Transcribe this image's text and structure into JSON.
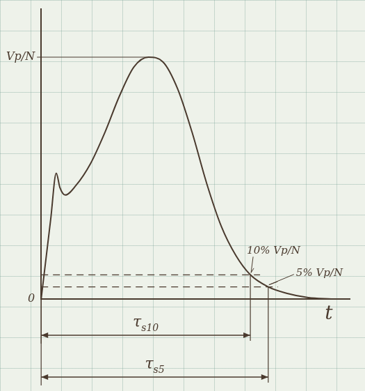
{
  "chart_data": {
    "type": "line",
    "xlabel": "t",
    "color": "#4a3a2e",
    "xlim": [
      0,
      10
    ],
    "ylim": [
      0,
      1.2
    ],
    "yticks": [
      0,
      {
        "value": 1,
        "label": "Vp/N"
      }
    ],
    "tick_labels": "y",
    "grid": false,
    "x": [
      0,
      0.31,
      0.49,
      0.61,
      0.78,
      1.13,
      1.6,
      2.07,
      2.54,
      3.01,
      3.48,
      3.95,
      4.42,
      4.89,
      5.36,
      5.84,
      6.31,
      6.78,
      7.36,
      7.95,
      8.66,
      9.4
    ],
    "values": [
      0,
      0.33,
      0.52,
      0.46,
      0.43,
      0.47,
      0.56,
      0.69,
      0.84,
      0.96,
      1.0,
      0.98,
      0.87,
      0.69,
      0.48,
      0.3,
      0.18,
      0.1,
      0.05,
      0.024,
      0.006,
      0
    ],
    "annotations": [
      {
        "text": "10% Vp/N",
        "x": 6.78,
        "y": 0.1
      },
      {
        "text": "5% Vp/N",
        "x": 7.36,
        "y": 0.05
      }
    ],
    "intervals": [
      {
        "label": "τs10",
        "start": 0,
        "end": 6.78
      },
      {
        "label": "τs5",
        "start": 0,
        "end": 7.36
      }
    ]
  }
}
